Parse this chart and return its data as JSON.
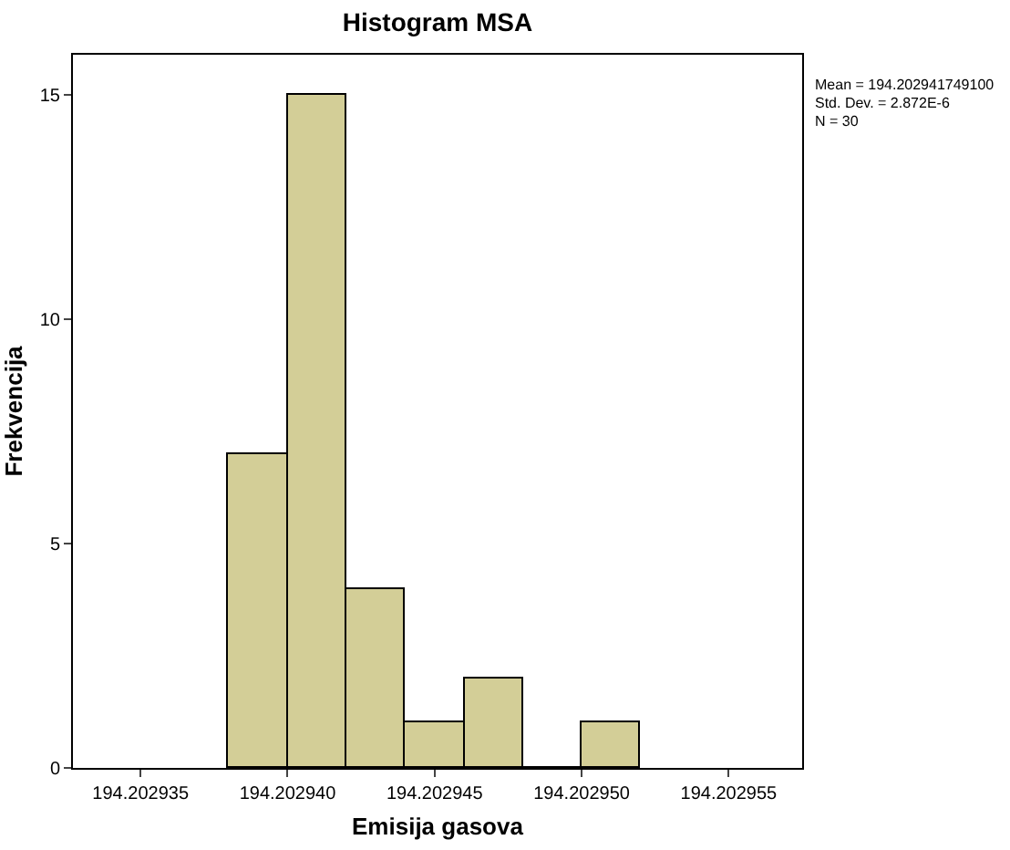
{
  "chart_data": {
    "type": "histogram",
    "title": "Histogram MSA",
    "xlabel": "Emisija gasova",
    "ylabel": "Frekvencija",
    "bins": [
      194.202938,
      194.20294,
      194.202942,
      194.202944,
      194.202946,
      194.202948,
      194.20295,
      194.202952
    ],
    "values": [
      7,
      15,
      4,
      1,
      2,
      0,
      1
    ],
    "color": "#d3ce97",
    "xlim": [
      194.2029327,
      194.2029575
    ],
    "xticks": [
      194.202935,
      {
        "value": 194.20294,
        "label": "194.202940"
      },
      194.202945,
      {
        "value": 194.20295,
        "label": "194.202950"
      },
      194.202955
    ],
    "ylim": [
      0,
      15.9
    ],
    "yticks": [
      0,
      5,
      10,
      15
    ],
    "legend": false,
    "annotations": [
      "Mean = 194.202941749100",
      "Std. Dev. = 2.872E-6",
      "N = 30"
    ]
  }
}
